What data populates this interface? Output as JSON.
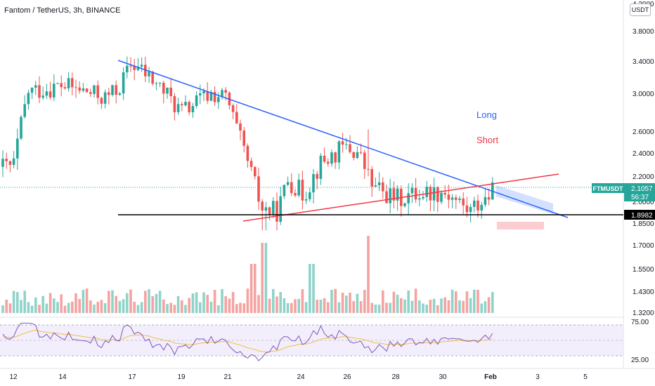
{
  "header": {
    "title": "Fantom / TetherUS, 3h, BINANCE",
    "currency_button": "USDT"
  },
  "price_scale": {
    "ticks": [
      "4.2000",
      "3.8000",
      "3.4000",
      "3.0000",
      "2.6000",
      "2.4000",
      "2.2000",
      "2.0000",
      "1.8500",
      "1.7000",
      "1.5500",
      "1.4300",
      "1.3200"
    ],
    "symbol_badge": "FTMUSDT",
    "last_price": "2.1057",
    "countdown": "56:37",
    "support_label": "1.8982"
  },
  "rsi_scale": {
    "ticks": [
      "75.00",
      "25.00"
    ]
  },
  "time_axis": {
    "labels": [
      "12",
      "14",
      "17",
      "19",
      "21",
      "24",
      "26",
      "28",
      "30",
      "Feb",
      "3",
      "5"
    ]
  },
  "annotations": {
    "long": "Long",
    "short": "Short"
  },
  "colors": {
    "up": "#26a69a",
    "down": "#ef5350",
    "vol_up": "#8fd3c9",
    "vol_down": "#f4a3a1",
    "trendline_down": "#2962ff",
    "trendline_up": "#f23645",
    "support": "#000000",
    "rsi": "#7e57c2",
    "rsi_ma": "#f0c040"
  },
  "chart_data": {
    "type": "candlestick",
    "symbol": "FTMUSDT",
    "interval": "3h",
    "exchange": "BINANCE",
    "price_range": [
      1.3,
      4.25
    ],
    "price_path": [
      [
        "12",
        2.28
      ],
      [
        "13",
        3.02
      ],
      [
        "14",
        3.1
      ],
      [
        "15",
        3.05
      ],
      [
        "16",
        2.95
      ],
      [
        "16.5",
        3.05
      ],
      [
        "17",
        3.38
      ],
      [
        "18",
        3.1
      ],
      [
        "19",
        2.8
      ],
      [
        "20",
        3.0
      ],
      [
        "21",
        2.95
      ],
      [
        "22",
        2.55
      ],
      [
        "23",
        1.95
      ],
      [
        "23.5",
        1.92
      ],
      [
        "24",
        2.18
      ],
      [
        "24.5",
        2.05
      ],
      [
        "25",
        2.3
      ],
      [
        "26",
        2.45
      ],
      [
        "26.5",
        2.4
      ],
      [
        "27",
        2.12
      ],
      [
        "28",
        2.02
      ],
      [
        "29",
        2.07
      ],
      [
        "30",
        2.08
      ],
      [
        "31",
        1.93
      ],
      [
        "Feb 1",
        2.1
      ]
    ],
    "last_price": 2.1057,
    "support_level": 1.8982,
    "annotations": [
      "Long",
      "Short"
    ],
    "rsi": {
      "levels": [
        75,
        25
      ],
      "range": [
        15,
        80
      ]
    }
  }
}
